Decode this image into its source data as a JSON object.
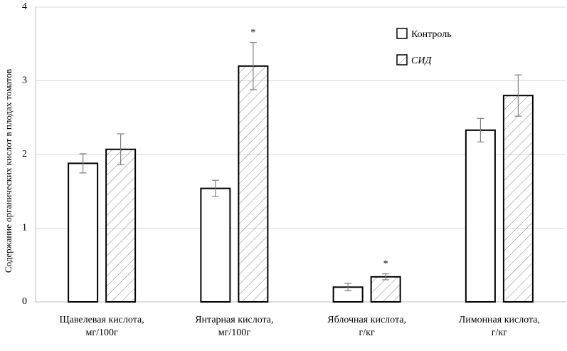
{
  "chart_data": {
    "type": "bar",
    "ylabel": "Содержание органических кислот в плодах томатов",
    "ylim": [
      0,
      4
    ],
    "yticks": [
      "0",
      "1",
      "2",
      "3",
      "4"
    ],
    "grid": true,
    "legend_position": "top-right",
    "categories": [
      [
        "Щавелевая кислота,",
        "мг/100г"
      ],
      [
        "Янтарная кислота,",
        "мг/100г"
      ],
      [
        "Яблочная кислота,",
        "г/кг"
      ],
      [
        "Лимонная кислота,",
        "г/кг"
      ]
    ],
    "series": [
      {
        "name": "Контроль",
        "fill": "white",
        "values": [
          1.88,
          1.54,
          0.2,
          2.33
        ],
        "errors": [
          0.13,
          0.11,
          0.05,
          0.16
        ]
      },
      {
        "name": "СИД",
        "fill": "hatched",
        "values": [
          2.07,
          3.2,
          0.34,
          2.8
        ],
        "errors": [
          0.21,
          0.32,
          0.04,
          0.28
        ]
      }
    ],
    "annotations": [
      {
        "category_index": 1,
        "series_index": 1,
        "text": "*"
      },
      {
        "category_index": 2,
        "series_index": 1,
        "text": "*"
      }
    ],
    "colors": {
      "grid": "#d9d9d9",
      "axis": "#bfbfbf",
      "bar_stroke": "#000000",
      "hatch": "#7f7f7f",
      "error": "#7f7f7f"
    }
  }
}
